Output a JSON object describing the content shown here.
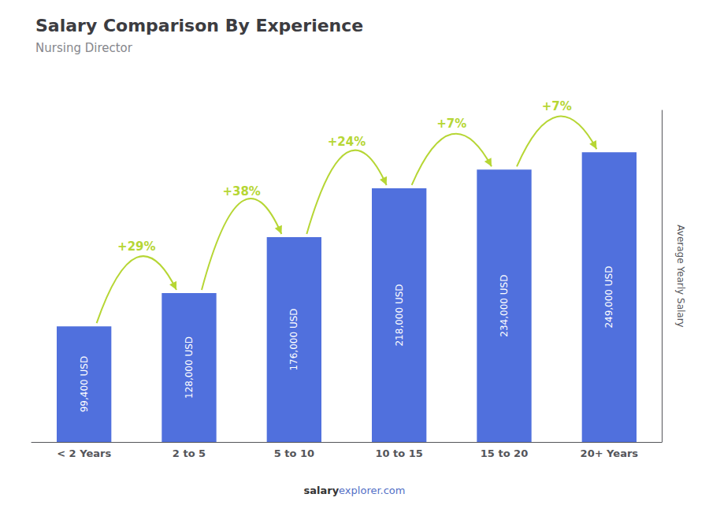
{
  "chart_data": {
    "type": "bar",
    "title": "Salary Comparison By Experience",
    "subtitle": "Nursing Director",
    "ylabel": "Average Yearly Salary",
    "categories": [
      "< 2 Years",
      "2 to 5",
      "5 to 10",
      "10 to 15",
      "15 to 20",
      "20+ Years"
    ],
    "values": [
      99400,
      128000,
      176000,
      218000,
      234000,
      249000
    ],
    "value_labels": [
      "99,400 USD",
      "128,000 USD",
      "176,000 USD",
      "218,000 USD",
      "234,000 USD",
      "249,000 USD"
    ],
    "data_labels": true,
    "annotations": [
      "+29%",
      "+38%",
      "+24%",
      "+7%",
      "+7%"
    ],
    "footer": [
      "salary",
      "explorer.com"
    ],
    "ylim": [
      0,
      285000
    ],
    "grid": false,
    "tick_labels": "x"
  }
}
